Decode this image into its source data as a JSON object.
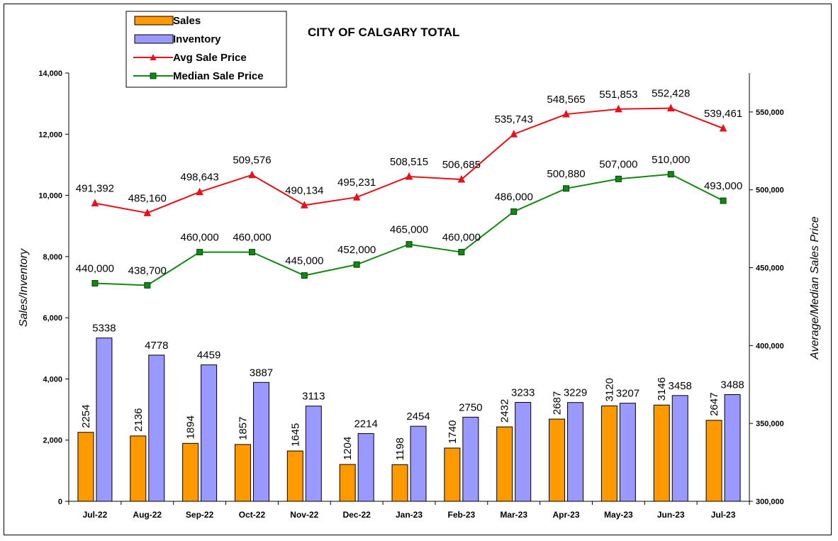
{
  "chart_data": {
    "type": "bar",
    "title": "CITY OF CALGARY TOTAL",
    "categories": [
      "Jul-22",
      "Aug-22",
      "Sep-22",
      "Oct-22",
      "Nov-22",
      "Dec-22",
      "Jan-23",
      "Feb-23",
      "Mar-23",
      "Apr-23",
      "May-23",
      "Jun-23",
      "Jul-23"
    ],
    "ylabel": "Sales/Inventory",
    "y2label": "Average/Median Sales Price",
    "ylim": [
      0,
      14000
    ],
    "y2lim": [
      300000,
      575000
    ],
    "yticks": [
      "0",
      "2,000",
      "4,000",
      "6,000",
      "8,000",
      "10,000",
      "12,000",
      "14,000"
    ],
    "y2ticks": [
      "300,000",
      "350,000",
      "400,000",
      "450,000",
      "500,000",
      "550,000"
    ],
    "series": [
      {
        "name": "Sales",
        "kind": "bar",
        "axis": "left",
        "color": "#FF9900",
        "values": [
          2254,
          2136,
          1894,
          1857,
          1645,
          1204,
          1198,
          1740,
          2432,
          2687,
          3120,
          3146,
          2647
        ],
        "labels": [
          "2254",
          "2136",
          "1894",
          "1857",
          "1645",
          "1204",
          "1198",
          "1740",
          "2432",
          "2687",
          "3120",
          "3146",
          "2647"
        ]
      },
      {
        "name": "Inventory",
        "kind": "bar",
        "axis": "left",
        "color": "#9999FF",
        "values": [
          5338,
          4778,
          4459,
          3887,
          3113,
          2214,
          2454,
          2750,
          3233,
          3229,
          3207,
          3458,
          3488
        ],
        "labels": [
          "5338",
          "4778",
          "4459",
          "3887",
          "3113",
          "2214",
          "2454",
          "2750",
          "3233",
          "3229",
          "3207",
          "3458",
          "3488"
        ]
      },
      {
        "name": "Avg Sale Price",
        "kind": "line",
        "marker": "triangle",
        "axis": "right",
        "color": "#E8101A",
        "values": [
          491392,
          485160,
          498643,
          509576,
          490134,
          495231,
          508515,
          506685,
          535743,
          548565,
          551853,
          552428,
          539461
        ],
        "labels": [
          "491,392",
          "485,160",
          "498,643",
          "509,576",
          "490,134",
          "495,231",
          "508,515",
          "506,685",
          "535,743",
          "548,565",
          "551,853",
          "552,428",
          "539,461"
        ]
      },
      {
        "name": "Median Sale Price",
        "kind": "line",
        "marker": "square",
        "axis": "right",
        "color": "#118811",
        "values": [
          440000,
          438700,
          460000,
          460000,
          445000,
          452000,
          465000,
          460000,
          486000,
          500880,
          507000,
          510000,
          493000
        ],
        "labels": [
          "440,000",
          "438,700",
          "460,000",
          "460,000",
          "445,000",
          "452,000",
          "465,000",
          "460,000",
          "486,000",
          "500,880",
          "507,000",
          "510,000",
          "493,000"
        ]
      }
    ],
    "legend_position": "top-left",
    "grid": false
  }
}
